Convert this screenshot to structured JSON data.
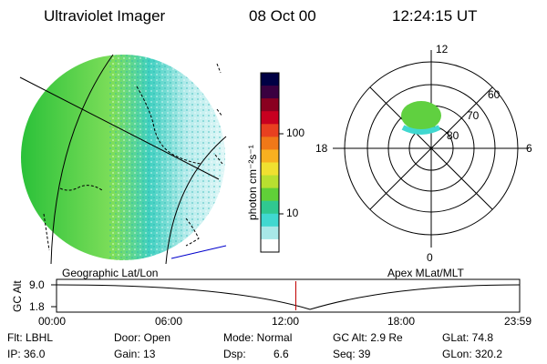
{
  "header": {
    "instrument": "Ultraviolet Imager",
    "date": "08 Oct 00",
    "time": "12:24:15 UT"
  },
  "colorbar": {
    "unit_label": "photon cm⁻²s⁻¹",
    "ticks": [
      "100",
      "10"
    ],
    "colors": [
      "#000044",
      "#3a0040",
      "#8a0020",
      "#c80020",
      "#e84020",
      "#f07818",
      "#f8b020",
      "#f0e030",
      "#b8e030",
      "#60d038",
      "#30c890",
      "#40d8d0",
      "#a8e8e8",
      "#ffffff"
    ]
  },
  "geo_map": {
    "label": "Geographic Lat/Lon",
    "colors": {
      "disk_left": "#22c436",
      "disk_mid": "#7ede5a",
      "disk_right": "#c8f0f0",
      "cyan": "#55d8d8"
    }
  },
  "polar_plot": {
    "label": "Apex MLat/MLT",
    "mlt_labels": {
      "top": "12",
      "bottom": "0",
      "left": "18",
      "right": "6"
    },
    "lat_labels": [
      "60",
      "70",
      "80"
    ]
  },
  "timeline": {
    "ylabel": "GC Alt",
    "yticks": [
      "9.0",
      "1.8"
    ],
    "xticks": [
      "00:00",
      "06:00",
      "12:00",
      "18:00",
      "23:59"
    ],
    "current_time_hours": 12.4
  },
  "status": {
    "flt": "Flt: LBHL",
    "ip": "IP: 36.0",
    "door": "Door: Open",
    "gain": "Gain: 13",
    "mode": "Mode: Normal",
    "dsp_label": "Dsp:",
    "dsp_value": "6.6",
    "gc_alt": "GC Alt: 2.9 Re",
    "seq": "Seq: 39",
    "glat": "GLat: 74.8",
    "glon": "GLon: 320.2"
  }
}
